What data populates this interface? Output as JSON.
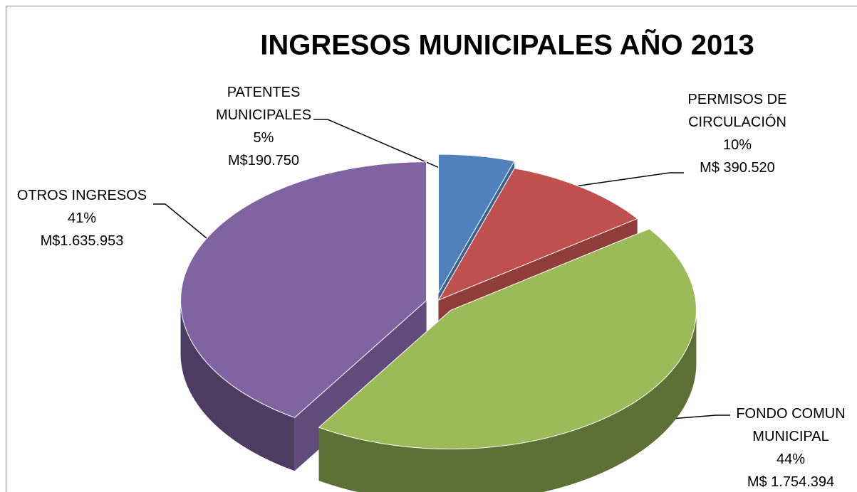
{
  "chart_data": {
    "type": "pie",
    "title": "INGRESOS  MUNICIPALES AÑO 2013",
    "categories": [
      "PATENTES MUNICIPALES",
      "PERMISOS DE CIRCULACIÓN",
      "FONDO COMUN MUNICIPAL",
      "OTROS INGRESOS"
    ],
    "values": [
      5,
      10,
      44,
      41
    ],
    "value_labels": [
      "5%",
      "10%",
      "44%",
      "41%"
    ],
    "amounts": [
      "M$190.750",
      "M$ 390.520",
      "M$ 1.754.394",
      "M$1.635.953"
    ],
    "colors": [
      "#4f81bd",
      "#c0504d",
      "#9bbb59",
      "#8064a2"
    ]
  }
}
